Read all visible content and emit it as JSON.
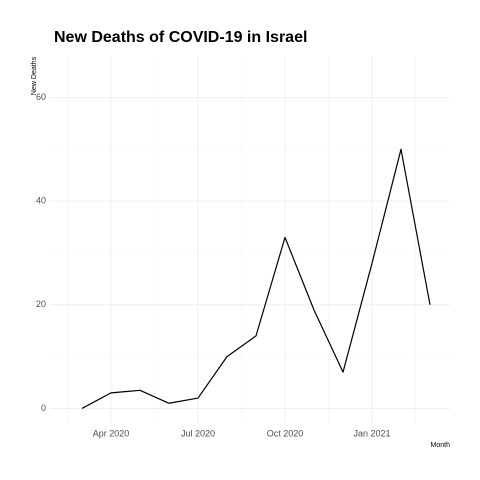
{
  "chart_data": {
    "type": "line",
    "title": "New Deaths of COVID-19 in Israel",
    "xlabel": "Month",
    "ylabel": "New Deaths",
    "x": [
      "2020-03",
      "2020-04",
      "2020-05",
      "2020-06",
      "2020-07",
      "2020-08",
      "2020-09",
      "2020-10",
      "2020-11",
      "2020-12",
      "2021-01",
      "2021-02",
      "2021-03"
    ],
    "series": [
      {
        "name": "New Deaths",
        "color": "#000000",
        "values": [
          0,
          3,
          3.5,
          1,
          2,
          10,
          14,
          33,
          19,
          7,
          28,
          50,
          20
        ]
      }
    ],
    "xlim": [
      "2020-02",
      "2021-03"
    ],
    "xticks": [
      {
        "value": "2020-04",
        "label": "Apr 2020"
      },
      {
        "value": "2020-07",
        "label": "Jul 2020"
      },
      {
        "value": "2020-10",
        "label": "Oct 2020"
      },
      {
        "value": "2021-01",
        "label": "Jan 2021"
      }
    ],
    "ylim": [
      -3,
      68
    ],
    "yticks": [
      0,
      20,
      40,
      60
    ],
    "grid": true
  }
}
